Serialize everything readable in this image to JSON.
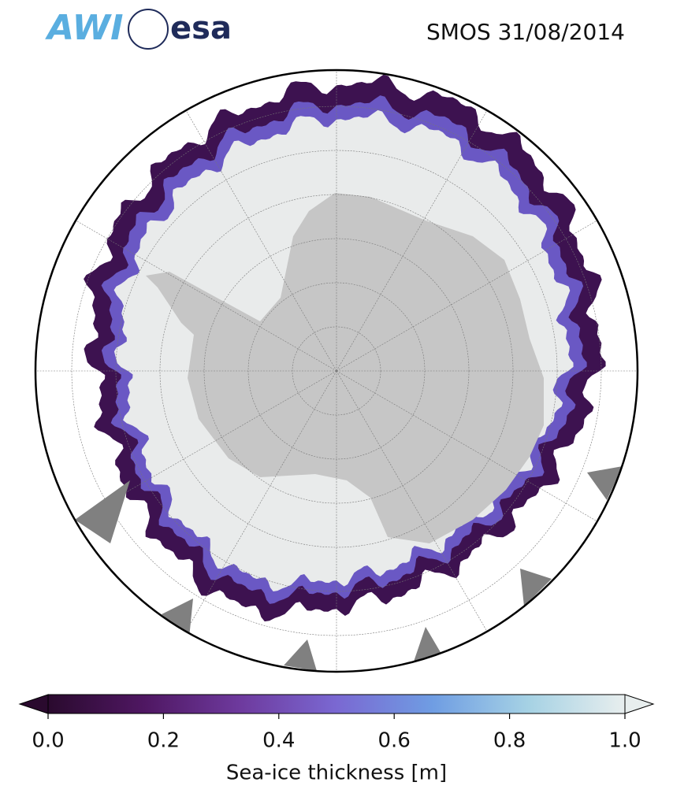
{
  "header": {
    "logos": [
      "AWI",
      "esa"
    ],
    "title": "SMOS 31/08/2014"
  },
  "colorbar": {
    "label": "Sea-ice thickness [m]",
    "lim": [
      0,
      1
    ],
    "ticks": [
      {
        "value": 0,
        "label": "0.0"
      },
      0.2,
      0.4,
      0.6,
      0.8,
      {
        "value": 1,
        "label": "1.0"
      }
    ],
    "colors": [
      "#2a0a2e",
      "#4f1762",
      "#6e3a9e",
      "#7a68d2",
      "#6f9de3",
      "#a6d2e4",
      "#e8eeee"
    ]
  }
}
